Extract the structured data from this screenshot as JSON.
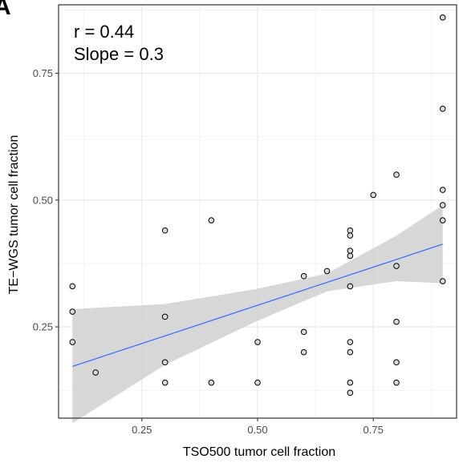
{
  "panel_label": "A",
  "annotations": {
    "r_text": "r = 0.44",
    "slope_text": "Slope = 0.3"
  },
  "colors": {
    "point_fill": "#d9d9d9",
    "point_stroke": "#000000",
    "fit_line": "#3366ff",
    "ci_band": "#d3d3d3",
    "grid": "#ebebeb",
    "panel_border": "#333333"
  },
  "chart_data": {
    "type": "scatter",
    "xlabel": "TSO500 tumor cell fraction",
    "ylabel": "TE−WGS tumor cell fraction",
    "xlim": [
      0.07,
      0.93
    ],
    "ylim": [
      0.07,
      0.885
    ],
    "x_ticks": [
      0.25,
      0.5,
      0.75
    ],
    "x_tick_labels": [
      "0.25",
      "0.50",
      "0.75"
    ],
    "y_ticks": [
      0.25,
      0.5,
      0.75
    ],
    "y_tick_labels": [
      "0.25",
      "0.50",
      "0.75"
    ],
    "grid": true,
    "points": [
      {
        "x": 0.1,
        "y": 0.33
      },
      {
        "x": 0.1,
        "y": 0.28
      },
      {
        "x": 0.1,
        "y": 0.22
      },
      {
        "x": 0.15,
        "y": 0.16
      },
      {
        "x": 0.3,
        "y": 0.44
      },
      {
        "x": 0.3,
        "y": 0.27
      },
      {
        "x": 0.3,
        "y": 0.18
      },
      {
        "x": 0.3,
        "y": 0.14
      },
      {
        "x": 0.4,
        "y": 0.46
      },
      {
        "x": 0.4,
        "y": 0.14
      },
      {
        "x": 0.5,
        "y": 0.22
      },
      {
        "x": 0.5,
        "y": 0.14
      },
      {
        "x": 0.6,
        "y": 0.35
      },
      {
        "x": 0.6,
        "y": 0.24
      },
      {
        "x": 0.6,
        "y": 0.2
      },
      {
        "x": 0.65,
        "y": 0.36
      },
      {
        "x": 0.7,
        "y": 0.44
      },
      {
        "x": 0.7,
        "y": 0.43
      },
      {
        "x": 0.7,
        "y": 0.4
      },
      {
        "x": 0.7,
        "y": 0.39
      },
      {
        "x": 0.7,
        "y": 0.33
      },
      {
        "x": 0.7,
        "y": 0.22
      },
      {
        "x": 0.7,
        "y": 0.2
      },
      {
        "x": 0.7,
        "y": 0.14
      },
      {
        "x": 0.7,
        "y": 0.12
      },
      {
        "x": 0.75,
        "y": 0.51
      },
      {
        "x": 0.8,
        "y": 0.55
      },
      {
        "x": 0.8,
        "y": 0.37
      },
      {
        "x": 0.8,
        "y": 0.26
      },
      {
        "x": 0.8,
        "y": 0.18
      },
      {
        "x": 0.8,
        "y": 0.14
      },
      {
        "x": 0.9,
        "y": 0.86
      },
      {
        "x": 0.9,
        "y": 0.68
      },
      {
        "x": 0.9,
        "y": 0.52
      },
      {
        "x": 0.9,
        "y": 0.49
      },
      {
        "x": 0.9,
        "y": 0.46
      },
      {
        "x": 0.9,
        "y": 0.34
      }
    ],
    "fit_line": {
      "x": [
        0.1,
        0.9
      ],
      "y": [
        0.172,
        0.413
      ]
    },
    "confidence_band": {
      "x": [
        0.1,
        0.3,
        0.5,
        0.65,
        0.8,
        0.9
      ],
      "upper": [
        0.285,
        0.295,
        0.325,
        0.355,
        0.43,
        0.49
      ],
      "lower": [
        0.06,
        0.175,
        0.262,
        0.32,
        0.34,
        0.336
      ]
    }
  }
}
